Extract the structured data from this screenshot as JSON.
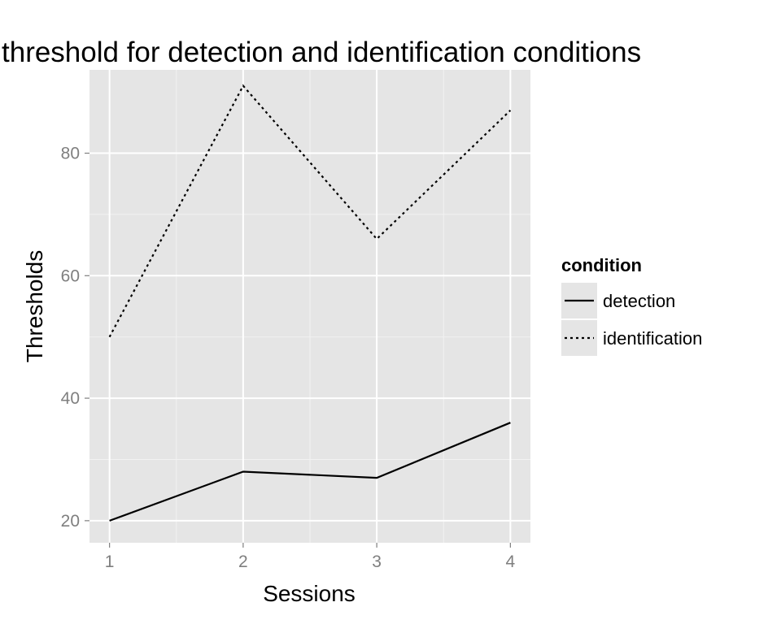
{
  "chart_data": {
    "type": "line",
    "title": "threshold for detection and identification conditions",
    "xlabel": "Sessions",
    "ylabel": "Thresholds",
    "x": [
      1,
      2,
      3,
      4
    ],
    "xlim": [
      0.85,
      4.15
    ],
    "ylim": [
      16.4,
      93.6
    ],
    "xticks": [
      1,
      2,
      3,
      4
    ],
    "yticks": [
      20,
      40,
      60,
      80
    ],
    "grid": true,
    "legend": {
      "title": "condition",
      "position": "right"
    },
    "series": [
      {
        "name": "detection",
        "values": [
          20,
          28,
          27,
          36
        ],
        "line_style": "solid",
        "color": "#000000"
      },
      {
        "name": "identification",
        "values": [
          50,
          91,
          66,
          87
        ],
        "line_style": "dotted",
        "color": "#000000"
      }
    ],
    "colors": {
      "panel_background": "#e5e5e5",
      "grid_major": "#ffffff",
      "grid_minor": "#f2f2f2",
      "tick_label": "#7f7f7f"
    }
  }
}
